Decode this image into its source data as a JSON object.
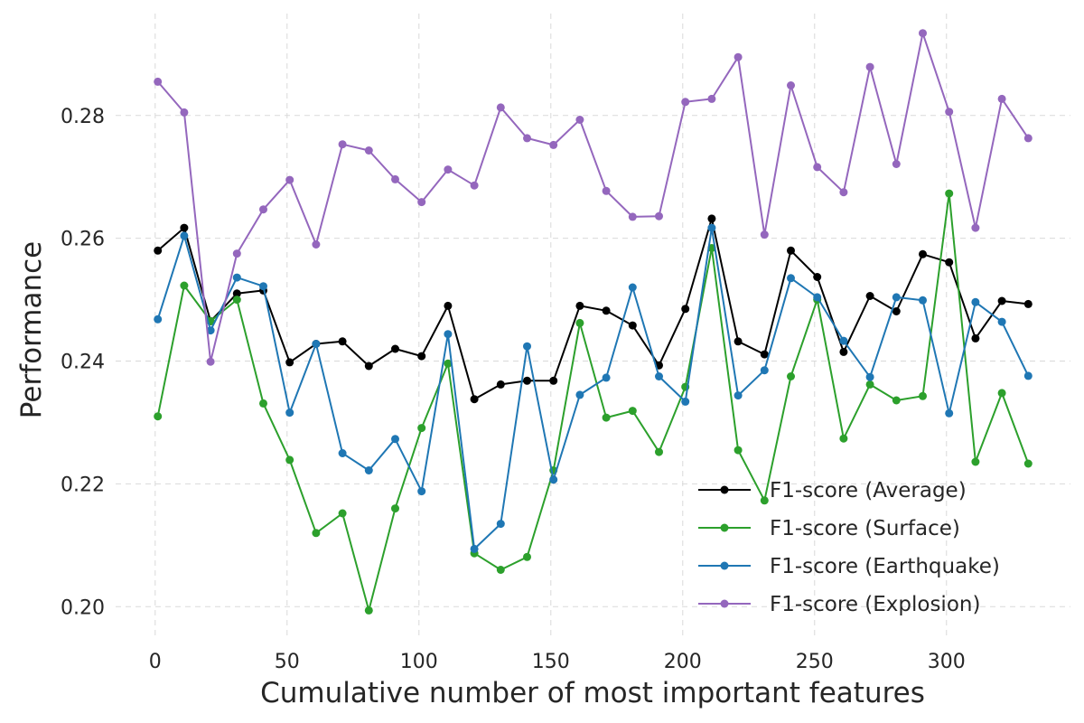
{
  "chart_data": {
    "type": "line",
    "xlabel": "Cumulative number of most important features",
    "ylabel": "Performance",
    "xlim": [
      -15,
      347
    ],
    "ylim": [
      0.1946,
      0.2966
    ],
    "xticks": [
      0,
      50,
      100,
      150,
      200,
      250,
      300
    ],
    "yticks": [
      0.2,
      0.22,
      0.24,
      0.26,
      0.28
    ],
    "xtick_labels": [
      "0",
      "50",
      "100",
      "150",
      "200",
      "250",
      "300"
    ],
    "ytick_labels": [
      "0.20",
      "0.22",
      "0.24",
      "0.26",
      "0.28"
    ],
    "grid": true,
    "legend_position": "lower-right",
    "x": [
      1,
      11,
      21,
      31,
      41,
      51,
      61,
      71,
      81,
      91,
      101,
      111,
      121,
      131,
      141,
      151,
      161,
      171,
      181,
      191,
      201,
      211,
      221,
      231,
      241,
      251,
      261,
      271,
      281,
      291,
      301,
      311,
      321,
      331
    ],
    "series": [
      {
        "name": "F1-score (Average)",
        "color": "#000000",
        "values": [
          0.258,
          0.2617,
          0.2465,
          0.251,
          0.2515,
          0.2398,
          0.2428,
          0.2432,
          0.2392,
          0.242,
          0.2408,
          0.249,
          0.2338,
          0.2362,
          0.2368,
          0.2368,
          0.249,
          0.2482,
          0.2458,
          0.2393,
          0.2485,
          0.2632,
          0.2432,
          0.2411,
          0.258,
          0.2537,
          0.2415,
          0.2506,
          0.2481,
          0.2574,
          0.2561,
          0.2437,
          0.2498,
          0.2493
        ]
      },
      {
        "name": "F1-score (Surface)",
        "color": "#2ca02c",
        "values": [
          0.231,
          0.2523,
          0.2465,
          0.25,
          0.2331,
          0.2239,
          0.212,
          0.2152,
          0.1994,
          0.216,
          0.2291,
          0.2396,
          0.2087,
          0.206,
          0.2081,
          0.2222,
          0.2462,
          0.2308,
          0.2319,
          0.2252,
          0.2358,
          0.2584,
          0.2255,
          0.2173,
          0.2375,
          0.25,
          0.2274,
          0.2362,
          0.2336,
          0.2343,
          0.2673,
          0.2236,
          0.2348,
          0.2233
        ]
      },
      {
        "name": "F1-score (Earthquake)",
        "color": "#1f77b4",
        "values": [
          0.2468,
          0.2604,
          0.245,
          0.2536,
          0.2522,
          0.2316,
          0.2428,
          0.225,
          0.2222,
          0.2273,
          0.2188,
          0.2444,
          0.2094,
          0.2135,
          0.2424,
          0.2207,
          0.2345,
          0.2373,
          0.252,
          0.2375,
          0.2334,
          0.2617,
          0.2344,
          0.2385,
          0.2535,
          0.2504,
          0.2433,
          0.2374,
          0.2504,
          0.2499,
          0.2315,
          0.2496,
          0.2464,
          0.2376
        ]
      },
      {
        "name": "F1-score (Explosion)",
        "color": "#9467bd",
        "values": [
          0.2855,
          0.2805,
          0.2399,
          0.2575,
          0.2647,
          0.2695,
          0.259,
          0.2753,
          0.2743,
          0.2696,
          0.2659,
          0.2712,
          0.2686,
          0.2813,
          0.2763,
          0.2752,
          0.2793,
          0.2677,
          0.2635,
          0.2636,
          0.2822,
          0.2827,
          0.2895,
          0.2606,
          0.2849,
          0.2716,
          0.2675,
          0.2879,
          0.2721,
          0.2934,
          0.2806,
          0.2617,
          0.2827,
          0.2763
        ]
      }
    ]
  }
}
